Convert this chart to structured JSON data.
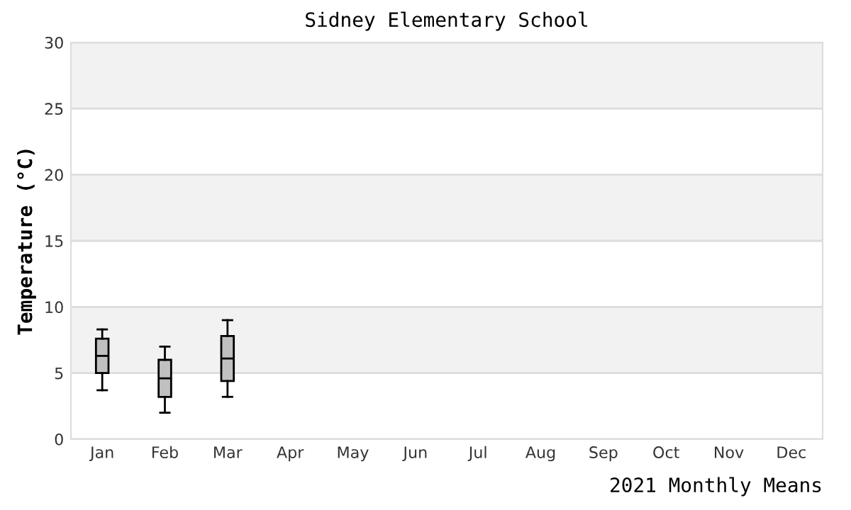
{
  "chart_data": {
    "type": "box",
    "title": "Sidney Elementary School",
    "xlabel": "2021 Monthly Means",
    "ylabel": "Temperature (°C)",
    "categories": [
      "Jan",
      "Feb",
      "Mar",
      "Apr",
      "May",
      "Jun",
      "Jul",
      "Aug",
      "Sep",
      "Oct",
      "Nov",
      "Dec"
    ],
    "boxes": [
      {
        "low": 3.7,
        "q1": 5.0,
        "median": 6.3,
        "q3": 7.6,
        "high": 8.3
      },
      {
        "low": 2.0,
        "q1": 3.2,
        "median": 4.6,
        "q3": 6.0,
        "high": 7.0
      },
      {
        "low": 3.2,
        "q1": 4.4,
        "median": 6.1,
        "q3": 7.8,
        "high": 9.0
      },
      null,
      null,
      null,
      null,
      null,
      null,
      null,
      null,
      null
    ],
    "color": "#c0c0c0",
    "ylim": [
      0,
      30
    ],
    "yticks": [
      0,
      5,
      10,
      15,
      20,
      25,
      30
    ],
    "grid": "y"
  }
}
